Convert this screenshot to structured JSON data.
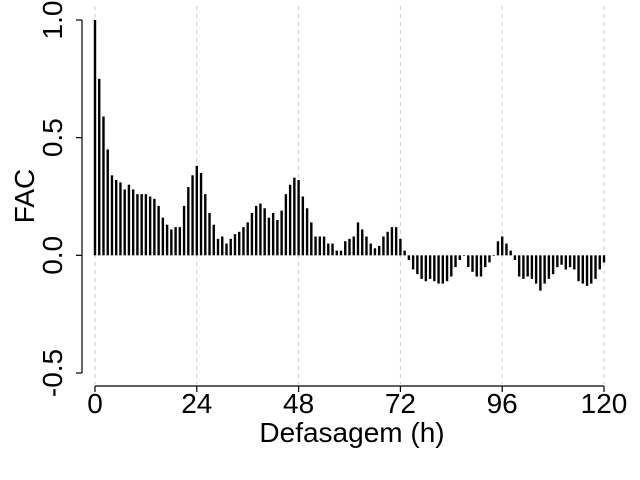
{
  "chart_data": {
    "type": "bar",
    "xlabel": "Defasagem (h)",
    "ylabel": "FAC",
    "xlim": [
      0,
      120
    ],
    "ylim": [
      -0.5,
      1.0
    ],
    "x_ticks": [
      0,
      24,
      48,
      72,
      96,
      120
    ],
    "x_tick_labels": [
      "0",
      "24",
      "48",
      "72",
      "96",
      "120"
    ],
    "y_ticks": [
      -0.5,
      0.0,
      0.5,
      1.0
    ],
    "y_tick_labels": [
      "-0.5",
      "0.0",
      "0.5",
      "1.0"
    ],
    "grid": "vertical-dashed",
    "bar_color": "#000000",
    "grid_color": "#cccccc",
    "x": [
      0,
      1,
      2,
      3,
      4,
      5,
      6,
      7,
      8,
      9,
      10,
      11,
      12,
      13,
      14,
      15,
      16,
      17,
      18,
      19,
      20,
      21,
      22,
      23,
      24,
      25,
      26,
      27,
      28,
      29,
      30,
      31,
      32,
      33,
      34,
      35,
      36,
      37,
      38,
      39,
      40,
      41,
      42,
      43,
      44,
      45,
      46,
      47,
      48,
      49,
      50,
      51,
      52,
      53,
      54,
      55,
      56,
      57,
      58,
      59,
      60,
      61,
      62,
      63,
      64,
      65,
      66,
      67,
      68,
      69,
      70,
      71,
      72,
      73,
      74,
      75,
      76,
      77,
      78,
      79,
      80,
      81,
      82,
      83,
      84,
      85,
      86,
      87,
      88,
      89,
      90,
      91,
      92,
      93,
      94,
      95,
      96,
      97,
      98,
      99,
      100,
      101,
      102,
      103,
      104,
      105,
      106,
      107,
      108,
      109,
      110,
      111,
      112,
      113,
      114,
      115,
      116,
      117,
      118,
      119,
      120
    ],
    "values": [
      1.0,
      0.75,
      0.59,
      0.45,
      0.34,
      0.32,
      0.31,
      0.28,
      0.3,
      0.28,
      0.26,
      0.26,
      0.26,
      0.25,
      0.24,
      0.21,
      0.16,
      0.13,
      0.11,
      0.12,
      0.12,
      0.21,
      0.29,
      0.34,
      0.38,
      0.35,
      0.26,
      0.18,
      0.13,
      0.07,
      0.08,
      0.05,
      0.07,
      0.09,
      0.1,
      0.12,
      0.14,
      0.18,
      0.21,
      0.22,
      0.2,
      0.16,
      0.18,
      0.15,
      0.19,
      0.26,
      0.3,
      0.33,
      0.32,
      0.25,
      0.2,
      0.14,
      0.08,
      0.08,
      0.08,
      0.05,
      0.05,
      0.02,
      0.02,
      0.06,
      0.07,
      0.08,
      0.14,
      0.11,
      0.08,
      0.05,
      0.03,
      0.04,
      0.08,
      0.1,
      0.12,
      0.12,
      0.07,
      0.02,
      -0.02,
      -0.06,
      -0.08,
      -0.1,
      -0.11,
      -0.1,
      -0.11,
      -0.12,
      -0.12,
      -0.11,
      -0.09,
      -0.05,
      -0.02,
      0.0,
      -0.05,
      -0.07,
      -0.09,
      -0.09,
      -0.05,
      -0.03,
      0.0,
      0.06,
      0.08,
      0.05,
      0.02,
      -0.02,
      -0.09,
      -0.1,
      -0.09,
      -0.1,
      -0.12,
      -0.15,
      -0.12,
      -0.1,
      -0.08,
      -0.05,
      -0.04,
      -0.06,
      -0.05,
      -0.06,
      -0.11,
      -0.12,
      -0.13,
      -0.12,
      -0.1,
      -0.06,
      -0.03
    ]
  }
}
